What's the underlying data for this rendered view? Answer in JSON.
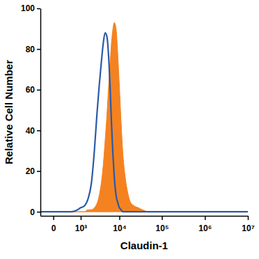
{
  "chart_data": {
    "type": "area",
    "x_label": "Claudin-1",
    "y_label": "Relative Cell Number",
    "x": [
      -300,
      0,
      500,
      800,
      1000,
      1300,
      1600,
      2000,
      2400,
      2800,
      3200,
      3600,
      4000,
      4500,
      5000,
      5500,
      6000,
      6500,
      7000,
      7500,
      8000,
      8500,
      9000,
      10000,
      11000,
      12000,
      14000,
      16000,
      18000,
      22000,
      28000,
      35000,
      50000,
      100000,
      1000000,
      10000000
    ],
    "series": [
      {
        "type": "area",
        "color": "#f58220",
        "values": [
          0,
          0,
          0,
          0,
          0,
          0,
          1,
          1,
          2,
          4,
          8,
          14,
          22,
          35,
          48,
          62,
          74,
          84,
          90,
          93,
          92,
          88,
          80,
          62,
          44,
          30,
          16,
          9,
          5,
          3,
          2,
          1,
          0,
          0,
          0,
          0
        ]
      },
      {
        "type": "line",
        "color": "#2b5aa8",
        "values": [
          0,
          0,
          0,
          1,
          2,
          3,
          6,
          14,
          30,
          48,
          62,
          73,
          82,
          88,
          86,
          76,
          60,
          42,
          28,
          18,
          11,
          7,
          5,
          2,
          1,
          0,
          0,
          0,
          0,
          0,
          0,
          0,
          0,
          0,
          0,
          0
        ]
      }
    ],
    "log": "x",
    "xlim": [
      -300,
      10000000
    ],
    "xticks": [
      0,
      {
        "value": 1000,
        "label": "10³"
      },
      {
        "value": 10000,
        "label": "10⁴"
      },
      {
        "value": 100000,
        "label": "10⁵"
      },
      {
        "value": 1000000,
        "label": "10⁶"
      },
      {
        "value": 10000000,
        "label": "10⁷"
      }
    ],
    "ylim": [
      -2,
      100
    ],
    "yticks": [
      0,
      20,
      40,
      60,
      80,
      100
    ]
  }
}
